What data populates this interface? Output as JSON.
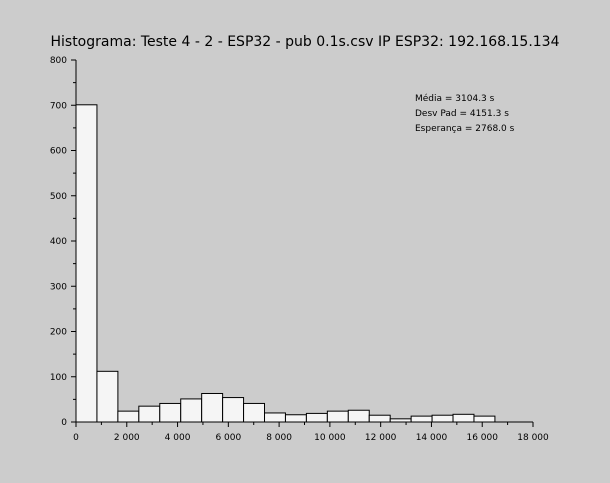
{
  "chart_data": {
    "type": "bar",
    "title": "Histograma: Teste 4 - 2 - ESP32 - pub 0.1s.csv IP ESP32: 192.168.15.134",
    "xlabel": "",
    "ylabel": "",
    "xlim": [
      0,
      18000
    ],
    "ylim": [
      0,
      800
    ],
    "x_ticks": [
      {
        "value": 0,
        "label": "0"
      },
      {
        "value": 2000,
        "label": "2 000"
      },
      {
        "value": 4000,
        "label": "4 000"
      },
      {
        "value": 6000,
        "label": "6 000"
      },
      {
        "value": 8000,
        "label": "8 000"
      },
      {
        "value": 10000,
        "label": "10 000"
      },
      {
        "value": 12000,
        "label": "12 000"
      },
      {
        "value": 14000,
        "label": "14 000"
      },
      {
        "value": 16000,
        "label": "16 000"
      },
      {
        "value": 18000,
        "label": "18 000"
      }
    ],
    "y_ticks": [
      {
        "value": 0,
        "label": "0"
      },
      {
        "value": 100,
        "label": "100"
      },
      {
        "value": 200,
        "label": "200"
      },
      {
        "value": 300,
        "label": "300"
      },
      {
        "value": 400,
        "label": "400"
      },
      {
        "value": 500,
        "label": "500"
      },
      {
        "value": 600,
        "label": "600"
      },
      {
        "value": 700,
        "label": "700"
      },
      {
        "value": 800,
        "label": "800"
      }
    ],
    "bins": [
      {
        "x0": 0,
        "x1": 825,
        "count": 701
      },
      {
        "x0": 825,
        "x1": 1650,
        "count": 112
      },
      {
        "x0": 1650,
        "x1": 2475,
        "count": 24
      },
      {
        "x0": 2475,
        "x1": 3300,
        "count": 35
      },
      {
        "x0": 3300,
        "x1": 4125,
        "count": 41
      },
      {
        "x0": 4125,
        "x1": 4950,
        "count": 51
      },
      {
        "x0": 4950,
        "x1": 5775,
        "count": 63
      },
      {
        "x0": 5775,
        "x1": 6600,
        "count": 54
      },
      {
        "x0": 6600,
        "x1": 7425,
        "count": 41
      },
      {
        "x0": 7425,
        "x1": 8250,
        "count": 20
      },
      {
        "x0": 8250,
        "x1": 9075,
        "count": 16
      },
      {
        "x0": 9075,
        "x1": 9900,
        "count": 19
      },
      {
        "x0": 9900,
        "x1": 10725,
        "count": 24
      },
      {
        "x0": 10725,
        "x1": 11550,
        "count": 26
      },
      {
        "x0": 11550,
        "x1": 12375,
        "count": 15
      },
      {
        "x0": 12375,
        "x1": 13200,
        "count": 7
      },
      {
        "x0": 13200,
        "x1": 14025,
        "count": 13
      },
      {
        "x0": 14025,
        "x1": 14850,
        "count": 15
      },
      {
        "x0": 14850,
        "x1": 15675,
        "count": 17
      },
      {
        "x0": 15675,
        "x1": 16500,
        "count": 13
      }
    ],
    "annotations": [
      "Média = 3104.3 s",
      "Desv Pad = 4151.3 s",
      "Esperança = 2768.0 s"
    ],
    "grid": false,
    "legend": "none"
  },
  "colors": {
    "background": "#cccccc",
    "bar_fill": "#f5f5f5",
    "bar_edge": "#000000",
    "axis": "#000000"
  }
}
